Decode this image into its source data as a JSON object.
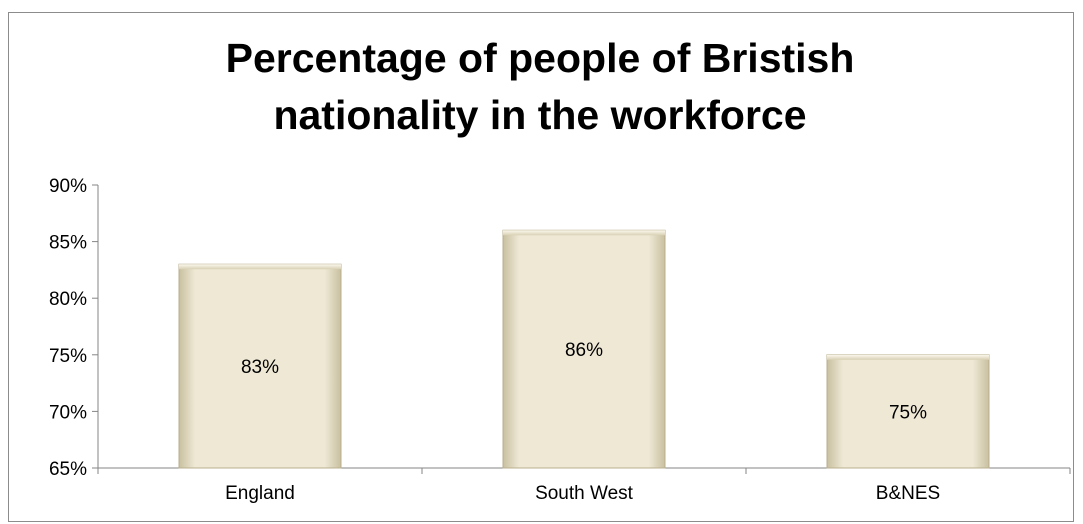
{
  "chart_data": {
    "type": "bar",
    "title": "Percentage of people of Bristish nationality in the workforce",
    "categories": [
      "England",
      "South West",
      "B&NES"
    ],
    "values": [
      0.83,
      0.86,
      0.75
    ],
    "data_labels": [
      "83%",
      "86%",
      "75%"
    ],
    "ylim": [
      0.65,
      0.9
    ],
    "y_ticks": [
      {
        "value": 0.9,
        "label": "90%"
      },
      {
        "value": 0.85,
        "label": "85%"
      },
      {
        "value": 0.8,
        "label": "80%"
      },
      {
        "value": 0.75,
        "label": "75%"
      },
      {
        "value": 0.7,
        "label": "70%"
      },
      {
        "value": 0.65,
        "label": "65%"
      }
    ],
    "grid": false,
    "legend": "none",
    "bar_color": "#eee8d5"
  }
}
